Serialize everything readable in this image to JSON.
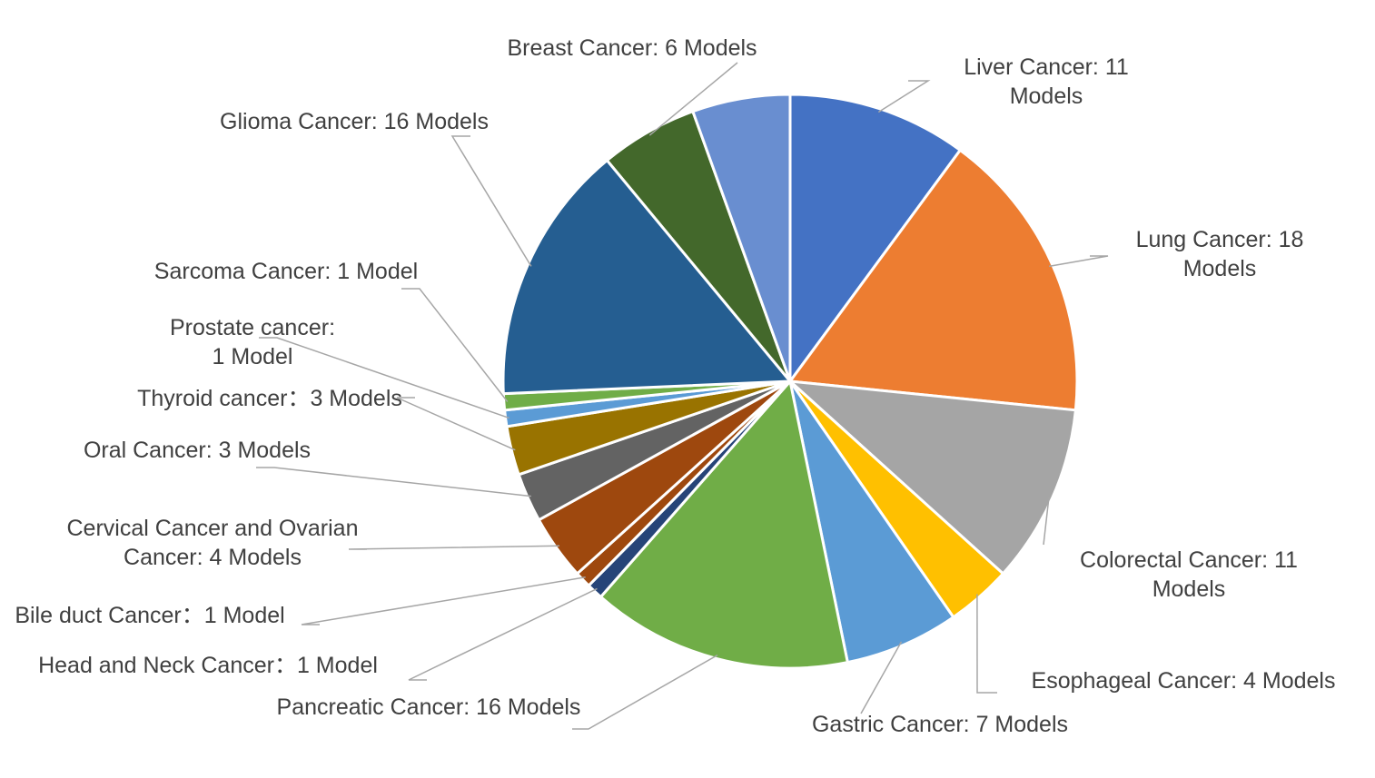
{
  "chart_data": {
    "type": "pie",
    "title": "",
    "start_angle_deg": 0,
    "direction": "clockwise",
    "legend": "none",
    "slices": [
      {
        "name": "Liver Cancer",
        "value": 11,
        "color": "#4472C4",
        "label_lines": [
          "Liver Cancer: 11",
          "Models"
        ]
      },
      {
        "name": "Lung Cancer",
        "value": 18,
        "color": "#ED7D31",
        "label_lines": [
          "Lung Cancer: 18",
          "Models"
        ]
      },
      {
        "name": "Colorectal Cancer",
        "value": 11,
        "color": "#A5A5A5",
        "label_lines": [
          "Colorectal Cancer: 11",
          "Models"
        ]
      },
      {
        "name": "Esophageal Cancer",
        "value": 4,
        "color": "#FFC000",
        "label_lines": [
          "Esophageal Cancer: 4 Models"
        ]
      },
      {
        "name": "Gastric Cancer",
        "value": 7,
        "color": "#5B9BD5",
        "label_lines": [
          "Gastric Cancer: 7 Models"
        ]
      },
      {
        "name": "Pancreatic Cancer",
        "value": 16,
        "color": "#70AD47",
        "label_lines": [
          "Pancreatic Cancer: 16 Models"
        ]
      },
      {
        "name": "Head and Neck Cancer",
        "value": 1,
        "color": "#264478",
        "label_lines": [
          "Head and Neck Cancer：1 Model"
        ]
      },
      {
        "name": "Bile duct Cancer",
        "value": 1,
        "color": "#9E480E",
        "label_lines": [
          "Bile duct Cancer：1 Model"
        ]
      },
      {
        "name": "Cervical Cancer and Ovarian Cancer",
        "value": 4,
        "color": "#9E480E",
        "label_lines": [
          "Cervical Cancer and Ovarian",
          "Cancer: 4 Models"
        ]
      },
      {
        "name": "Oral Cancer",
        "value": 3,
        "color": "#636363",
        "label_lines": [
          "Oral Cancer: 3 Models"
        ]
      },
      {
        "name": "Thyroid cancer",
        "value": 3,
        "color": "#997300",
        "label_lines": [
          "Thyroid cancer：3 Models"
        ]
      },
      {
        "name": "Prostate cancer",
        "value": 1,
        "color": "#5B9BD5",
        "label_lines": [
          "Prostate cancer:",
          "1 Model"
        ]
      },
      {
        "name": "Sarcoma Cancer",
        "value": 1,
        "color": "#70AD47",
        "label_lines": [
          "Sarcoma Cancer: 1 Model"
        ]
      },
      {
        "name": "Glioma Cancer",
        "value": 16,
        "color": "#255E91",
        "label_lines": [
          "Glioma Cancer: 16 Models"
        ]
      },
      {
        "name": "Breast Cancer",
        "value": 6,
        "color": "#43682B",
        "label_lines": [
          "Breast Cancer: 6 Models"
        ]
      },
      {
        "name": "",
        "value": 6,
        "color": "#698ED0",
        "label_lines": []
      }
    ]
  }
}
